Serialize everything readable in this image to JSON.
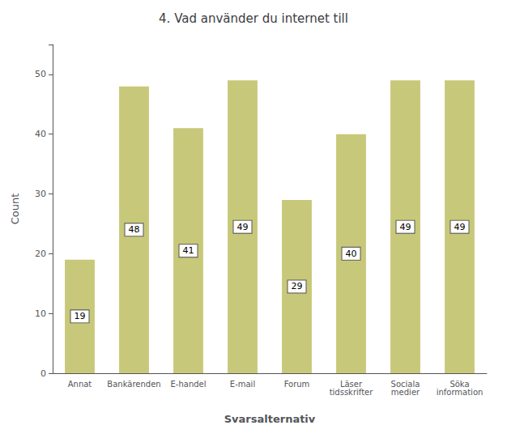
{
  "chart_data": {
    "type": "bar",
    "title": "4. Vad använder du internet till",
    "categories": [
      "Annat",
      "Bankärenden",
      "E-handel",
      "E-mail",
      "Forum",
      "Läser\ntidsskrifter",
      "Sociala\nmedier",
      "Söka\ninformation"
    ],
    "values": [
      19,
      48,
      41,
      49,
      29,
      40,
      49,
      49
    ],
    "color": "#c8c87a",
    "xlabel": "Svarsalternativ",
    "ylabel": "Count",
    "ylim": [
      0,
      55
    ],
    "yticks": [
      0,
      10,
      20,
      30,
      40,
      50
    ],
    "grid": false,
    "data_labels": true
  }
}
